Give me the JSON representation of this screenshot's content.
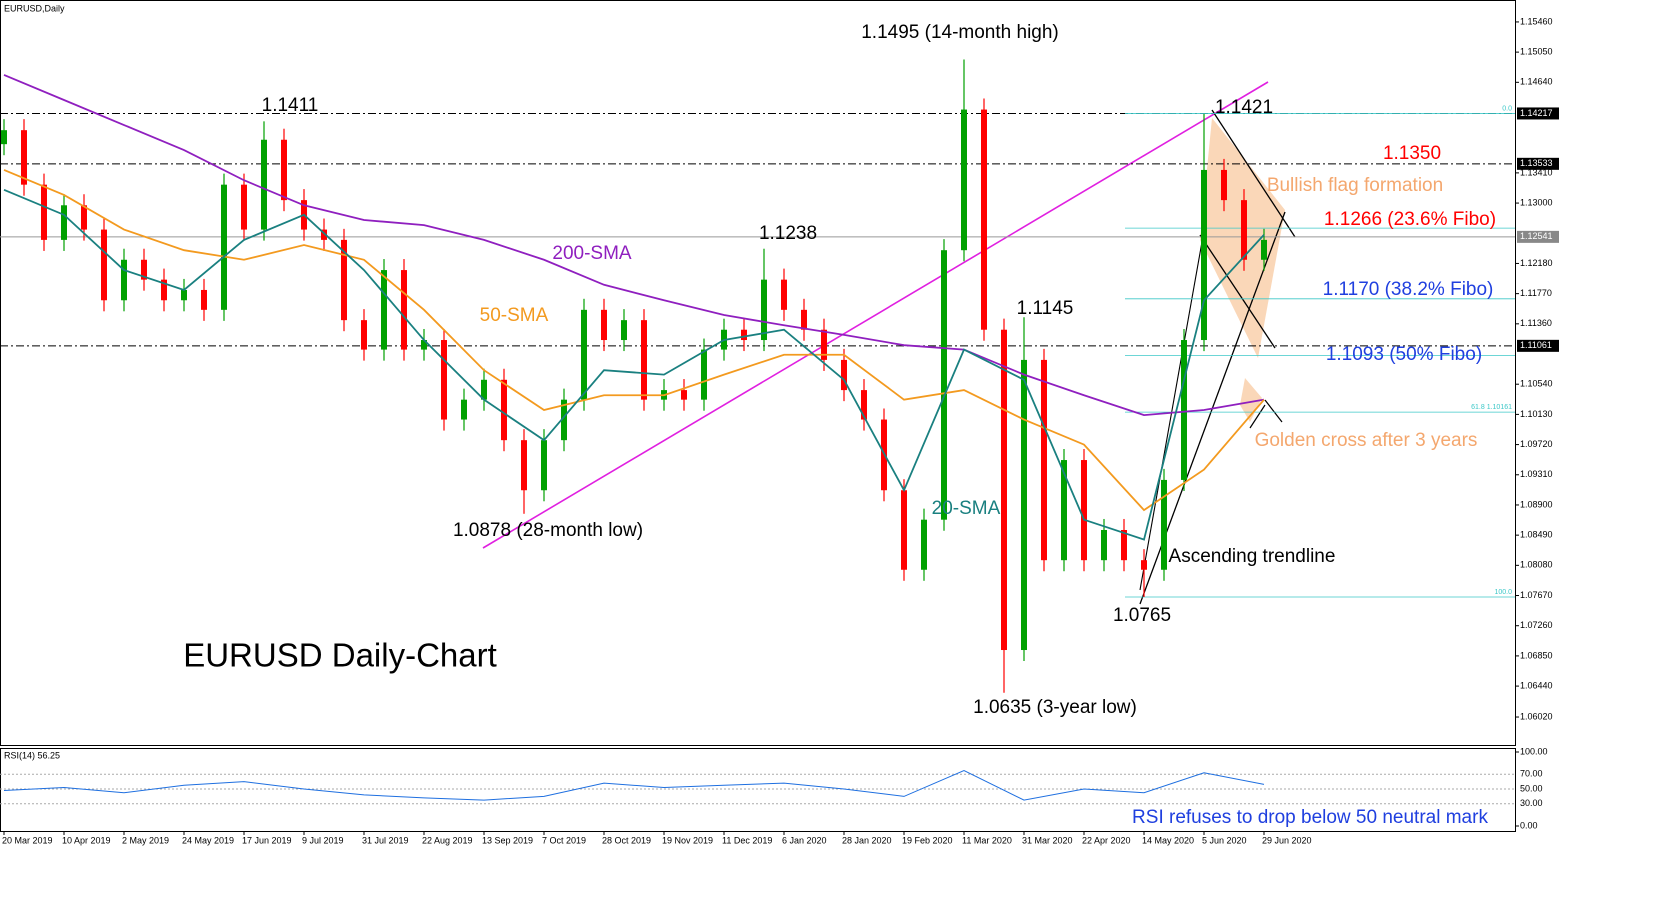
{
  "chart_data": {
    "type": "candlestick",
    "title": "EURUSD,Daily",
    "up_color": "#00a000",
    "down_color": "#ff0000",
    "xlabels": [
      "20 Mar 2019",
      "10 Apr 2019",
      "2 May 2019",
      "24 May 2019",
      "17 Jun 2019",
      "9 Jul 2019",
      "31 Jul 2019",
      "22 Aug 2019",
      "13 Sep 2019",
      "7 Oct 2019",
      "28 Oct 2019",
      "19 Nov 2019",
      "11 Dec 2019",
      "6 Jan 2020",
      "28 Jan 2020",
      "19 Feb 2020",
      "11 Mar 2020",
      "31 Mar 2020",
      "22 Apr 2020",
      "14 May 2020",
      "5 Jun 2020",
      "29 Jun 2020"
    ],
    "open": [
      1.138,
      1.1399,
      1.1325,
      1.125,
      1.1297,
      1.1264,
      1.1168,
      1.1223,
      1.1196,
      1.1168,
      1.1182,
      1.1155,
      1.1325,
      1.1264,
      1.1386,
      1.1304,
      1.1264,
      1.125,
      1.1141,
      1.1101,
      1.1209,
      1.1101,
      1.1114,
      1.1006,
      1.1033,
      1.106,
      1.0978,
      1.091,
      1.0978,
      1.1033,
      1.1155,
      1.1114,
      1.1141,
      1.1033,
      1.1046,
      1.1033,
      1.1101,
      1.1128,
      1.1114,
      1.1196,
      1.1155,
      1.1128,
      1.1087,
      1.1046,
      1.1006,
      1.091,
      1.0802,
      1.087,
      1.1236,
      1.1427,
      1.1128,
      1.0693,
      1.1087,
      1.0815,
      1.0951,
      1.0815,
      1.0856,
      1.0815,
      1.0802,
      1.0924,
      1.1114,
      1.1345,
      1.1304,
      1.1223
    ],
    "high": [
      1.1414,
      1.1414,
      1.134,
      1.1312,
      1.1312,
      1.1279,
      1.1238,
      1.1238,
      1.1211,
      1.1197,
      1.1197,
      1.134,
      1.134,
      1.1411,
      1.1401,
      1.1319,
      1.1279,
      1.1265,
      1.1156,
      1.1224,
      1.1224,
      1.1129,
      1.1129,
      1.1048,
      1.1075,
      1.1075,
      1.0993,
      1.0993,
      1.1048,
      1.117,
      1.117,
      1.1156,
      1.1156,
      1.1061,
      1.1061,
      1.1116,
      1.1143,
      1.1143,
      1.1238,
      1.1211,
      1.117,
      1.1143,
      1.1102,
      1.1061,
      1.1021,
      1.0925,
      1.0885,
      1.1251,
      1.1495,
      1.1442,
      1.1143,
      1.1145,
      1.1102,
      1.0966,
      1.0966,
      1.0871,
      1.0871,
      1.083,
      1.0939,
      1.1129,
      1.1421,
      1.136,
      1.1319,
      1.1265
    ],
    "low": [
      1.1365,
      1.131,
      1.1235,
      1.1235,
      1.1249,
      1.1153,
      1.1153,
      1.1181,
      1.1153,
      1.1153,
      1.114,
      1.114,
      1.1249,
      1.1249,
      1.1289,
      1.1249,
      1.1235,
      1.1126,
      1.1086,
      1.1086,
      1.1086,
      1.1086,
      1.0991,
      1.0991,
      1.1018,
      1.0963,
      1.0878,
      1.0895,
      1.0963,
      1.1018,
      1.1099,
      1.1099,
      1.1018,
      1.1018,
      1.1018,
      1.1018,
      1.1086,
      1.1099,
      1.1099,
      1.114,
      1.1113,
      1.1072,
      1.1031,
      1.0991,
      1.0895,
      1.0787,
      1.0787,
      1.0855,
      1.1221,
      1.1113,
      1.0635,
      1.0678,
      1.08,
      1.08,
      1.08,
      1.08,
      1.08,
      1.0765,
      1.0787,
      1.0909,
      1.1099,
      1.1289,
      1.1208,
      1.1208
    ],
    "close": [
      1.1399,
      1.1325,
      1.125,
      1.1297,
      1.1264,
      1.1168,
      1.1223,
      1.1196,
      1.1168,
      1.1182,
      1.1155,
      1.1325,
      1.1264,
      1.1386,
      1.1304,
      1.1264,
      1.125,
      1.1141,
      1.1101,
      1.1209,
      1.1101,
      1.1114,
      1.1006,
      1.1033,
      1.106,
      1.0978,
      1.091,
      1.0978,
      1.1033,
      1.1155,
      1.1114,
      1.1141,
      1.1033,
      1.1046,
      1.1033,
      1.1101,
      1.1128,
      1.1114,
      1.1196,
      1.1155,
      1.1128,
      1.1087,
      1.1046,
      1.1006,
      1.091,
      1.0802,
      1.087,
      1.1236,
      1.1427,
      1.1128,
      1.0693,
      1.1087,
      1.0815,
      1.0951,
      1.0815,
      1.0856,
      1.0815,
      1.0802,
      1.0924,
      1.1114,
      1.1345,
      1.1304,
      1.1223,
      1.125
    ],
    "series": [
      {
        "name": "200-SMA",
        "color": "#8f1fbf",
        "values": [
          1.1474,
          1.144,
          1.1406,
          1.1372,
          1.1331,
          1.1297,
          1.1277,
          1.127,
          1.125,
          1.1223,
          1.1189,
          1.1168,
          1.1148,
          1.1134,
          1.1121,
          1.1107,
          1.1101,
          1.1067,
          1.1039,
          1.1012,
          1.1019,
          1.1033
        ]
      },
      {
        "name": "50-SMA",
        "color": "#f39a1f",
        "values": [
          1.1345,
          1.1311,
          1.1264,
          1.1236,
          1.1223,
          1.1243,
          1.1223,
          1.1155,
          1.1073,
          1.1019,
          1.1039,
          1.1039,
          1.1067,
          1.1094,
          1.1094,
          1.1033,
          1.1046,
          1.1006,
          1.0972,
          1.0883,
          1.0938,
          1.1033
        ]
      },
      {
        "name": "20-SMA",
        "color": "#1a8080",
        "values": [
          1.1318,
          1.1284,
          1.1209,
          1.1182,
          1.125,
          1.1284,
          1.1209,
          1.1114,
          1.1033,
          1.0978,
          1.1073,
          1.1067,
          1.1114,
          1.1128,
          1.106,
          1.091,
          1.1101,
          1.106,
          1.087,
          1.0843,
          1.1168,
          1.1257
        ]
      }
    ],
    "ylim": [
      1.0564,
      1.1569
    ],
    "yticks": [
      {
        "value": 1.1546,
        "label": "1.15460"
      },
      {
        "value": 1.1505,
        "label": "1.15050"
      },
      {
        "value": 1.1464,
        "label": "1.14640"
      },
      {
        "value": 1.1341,
        "label": "1.13410"
      },
      {
        "value": 1.13,
        "label": "1.13000"
      },
      {
        "value": 1.1218,
        "label": "1.12180"
      },
      {
        "value": 1.1177,
        "label": "1.11770"
      },
      {
        "value": 1.1136,
        "label": "1.11360"
      },
      {
        "value": 1.1054,
        "label": "1.10540"
      },
      {
        "value": 1.1013,
        "label": "1.10130"
      },
      {
        "value": 1.0972,
        "label": "1.09720"
      },
      {
        "value": 1.0931,
        "label": "1.09310"
      },
      {
        "value": 1.089,
        "label": "1.08900"
      },
      {
        "value": 1.0849,
        "label": "1.08490"
      },
      {
        "value": 1.0808,
        "label": "1.08080"
      },
      {
        "value": 1.0767,
        "label": "1.07670"
      },
      {
        "value": 1.0726,
        "label": "1.07260"
      },
      {
        "value": 1.0685,
        "label": "1.06850"
      },
      {
        "value": 1.0644,
        "label": "1.06440"
      },
      {
        "value": 1.0602,
        "label": "1.06020"
      }
    ],
    "levels": [
      1.14217,
      1.13533,
      1.11061
    ],
    "current_price": 1.12541,
    "fibo": [
      {
        "value": 1.14217,
        "label": "0.0"
      },
      {
        "value": 1.1266
      },
      {
        "value": 1.117
      },
      {
        "value": 1.1093
      },
      {
        "value": 1.10161,
        "label": "61.8 1.10161"
      },
      {
        "value": 1.0765,
        "label": "100.0"
      }
    ],
    "annotations": [
      {
        "text": "1.1495 (14-month high)",
        "color": "#000000"
      },
      {
        "text": "1.1411",
        "color": "#000000"
      },
      {
        "text": "1.1238",
        "color": "#000000"
      },
      {
        "text": "1.1145",
        "color": "#000000"
      },
      {
        "text": "1.1421",
        "color": "#000000"
      },
      {
        "text": "1.1350",
        "color": "#ff0000"
      },
      {
        "text": "Bullish flag formation",
        "color": "#f4a76e"
      },
      {
        "text": "1.1266  (23.6% Fibo)",
        "color": "#ff0000"
      },
      {
        "text": "1.1170 (38.2% Fibo)",
        "color": "#1f3fdf"
      },
      {
        "text": "1.1093 (50% Fibo)",
        "color": "#1f3fdf"
      },
      {
        "text": "Golden cross after 3 years",
        "color": "#f4a76e"
      },
      {
        "text": "1.0878 (28-month low)",
        "color": "#000000"
      },
      {
        "text": "Ascending trendline",
        "color": "#000000"
      },
      {
        "text": "1.0765",
        "color": "#000000"
      },
      {
        "text": "1.0635 (3-year low)",
        "color": "#000000"
      },
      {
        "text": "EURUSD Daily-Chart",
        "color": "#000000"
      },
      {
        "text": "RSI refuses to drop below 50 neutral mark",
        "color": "#1f3fdf"
      }
    ],
    "rsi": {
      "label": "RSI(14) 56.25",
      "color": "#1e6fe0",
      "ylim": [
        0,
        100
      ],
      "yticks": [
        {
          "value": 100,
          "label": "100.00"
        },
        {
          "value": 70,
          "label": "70.00"
        },
        {
          "value": 50,
          "label": "50.00"
        },
        {
          "value": 30,
          "label": "30.00"
        },
        {
          "value": 0,
          "label": "0.00"
        }
      ],
      "values": [
        48,
        52,
        45,
        55,
        60,
        50,
        42,
        38,
        35,
        40,
        58,
        52,
        55,
        58,
        50,
        40,
        75,
        35,
        50,
        45,
        72,
        56.25
      ]
    }
  }
}
